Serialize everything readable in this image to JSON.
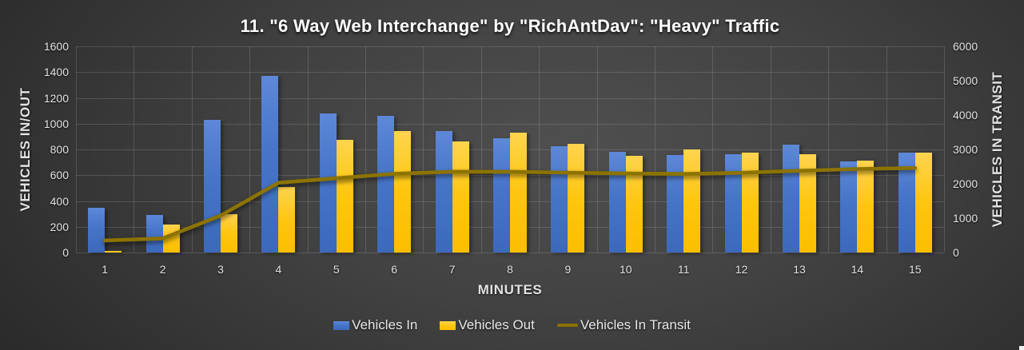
{
  "chart_data": {
    "type": "bar",
    "subtype": "grouped-bar-with-secondary-axis-line",
    "title": "11. \"6 Way Web Interchange\" by \"RichAntDav\": \"Heavy\" Traffic",
    "xlabel": "MINUTES",
    "ylabel_left": "VEHICLES IN/OUT",
    "ylabel_right": "VEHICLES IN TRANSIT",
    "categories": [
      1,
      2,
      3,
      4,
      5,
      6,
      7,
      8,
      9,
      10,
      11,
      12,
      13,
      14,
      15
    ],
    "series": [
      {
        "name": "Vehicles In",
        "kind": "bar",
        "axis": "left",
        "color": "#4674c6",
        "values": [
          350,
          290,
          1030,
          1370,
          1080,
          1060,
          940,
          890,
          825,
          780,
          755,
          765,
          835,
          710,
          775
        ]
      },
      {
        "name": "Vehicles Out",
        "kind": "bar",
        "axis": "left",
        "color": "#fec60f",
        "values": [
          10,
          215,
          300,
          510,
          875,
          940,
          865,
          930,
          845,
          750,
          800,
          775,
          765,
          715,
          775
        ]
      },
      {
        "name": "Vehicles In Transit",
        "kind": "line",
        "axis": "right",
        "color": "#8c7300",
        "values": [
          350,
          410,
          1075,
          2030,
          2160,
          2290,
          2350,
          2350,
          2325,
          2300,
          2285,
          2320,
          2380,
          2430,
          2460
        ]
      }
    ],
    "left_axis": {
      "min": 0,
      "max": 1600,
      "step": 200,
      "ticks": [
        "0",
        "200",
        "400",
        "600",
        "800",
        "1000",
        "1200",
        "1400",
        "1600"
      ]
    },
    "right_axis": {
      "min": 0,
      "max": 6000,
      "step": 1000,
      "ticks": [
        "0",
        "1000",
        "2000",
        "3000",
        "4000",
        "5000",
        "6000"
      ]
    },
    "grid": true,
    "legend_position": "bottom"
  },
  "style": {
    "background_dark": "#2a2a2a",
    "background_light": "#4f4f4f",
    "gridline_color": "#6b6b6b",
    "text_color": "#e2e2e2",
    "title_color": "#ffffff"
  }
}
